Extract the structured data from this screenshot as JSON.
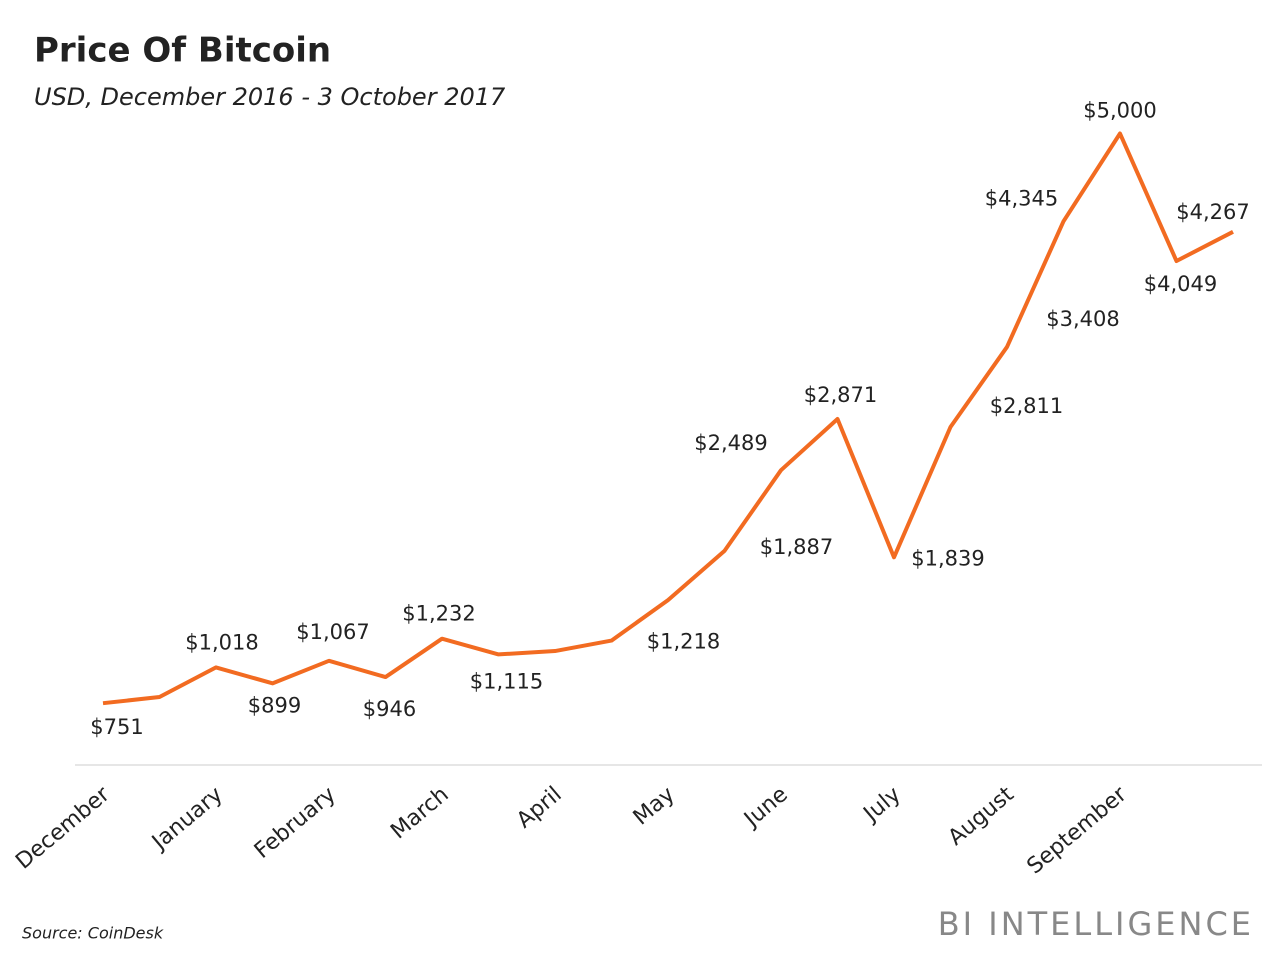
{
  "chart_data": {
    "type": "line",
    "title": "Price Of Bitcoin",
    "subtitle": "USD, December 2016 - 3 October 2017",
    "source": "Source: CoinDesk",
    "brand": "BI INTELLIGENCE",
    "categories": [
      "December",
      null,
      "January",
      null,
      "February",
      null,
      "March",
      null,
      "April",
      null,
      "May",
      null,
      "June",
      null,
      "July",
      null,
      "August",
      null,
      "September",
      null,
      null
    ],
    "series": [
      {
        "name": "Price",
        "color": "#f26b21",
        "values": [
          751,
          797,
          1018,
          899,
          1067,
          946,
          1232,
          1115,
          1140,
          1218,
          1520,
          1887,
          2489,
          2871,
          1839,
          2811,
          3408,
          4345,
          5000,
          4049,
          4267
        ],
        "value_labels": [
          "$751",
          null,
          "$1,018",
          "$899",
          "$1,067",
          "$946",
          "$1,232",
          "$1,115",
          null,
          "$1,218",
          null,
          "$1,887",
          "$2,489",
          "$2,871",
          "$1,839",
          "$2,811",
          "$3,408",
          "$4,345",
          "$5,000",
          "$4,049",
          "$4,267"
        ]
      }
    ],
    "ylim": [
      290,
      5250
    ]
  }
}
